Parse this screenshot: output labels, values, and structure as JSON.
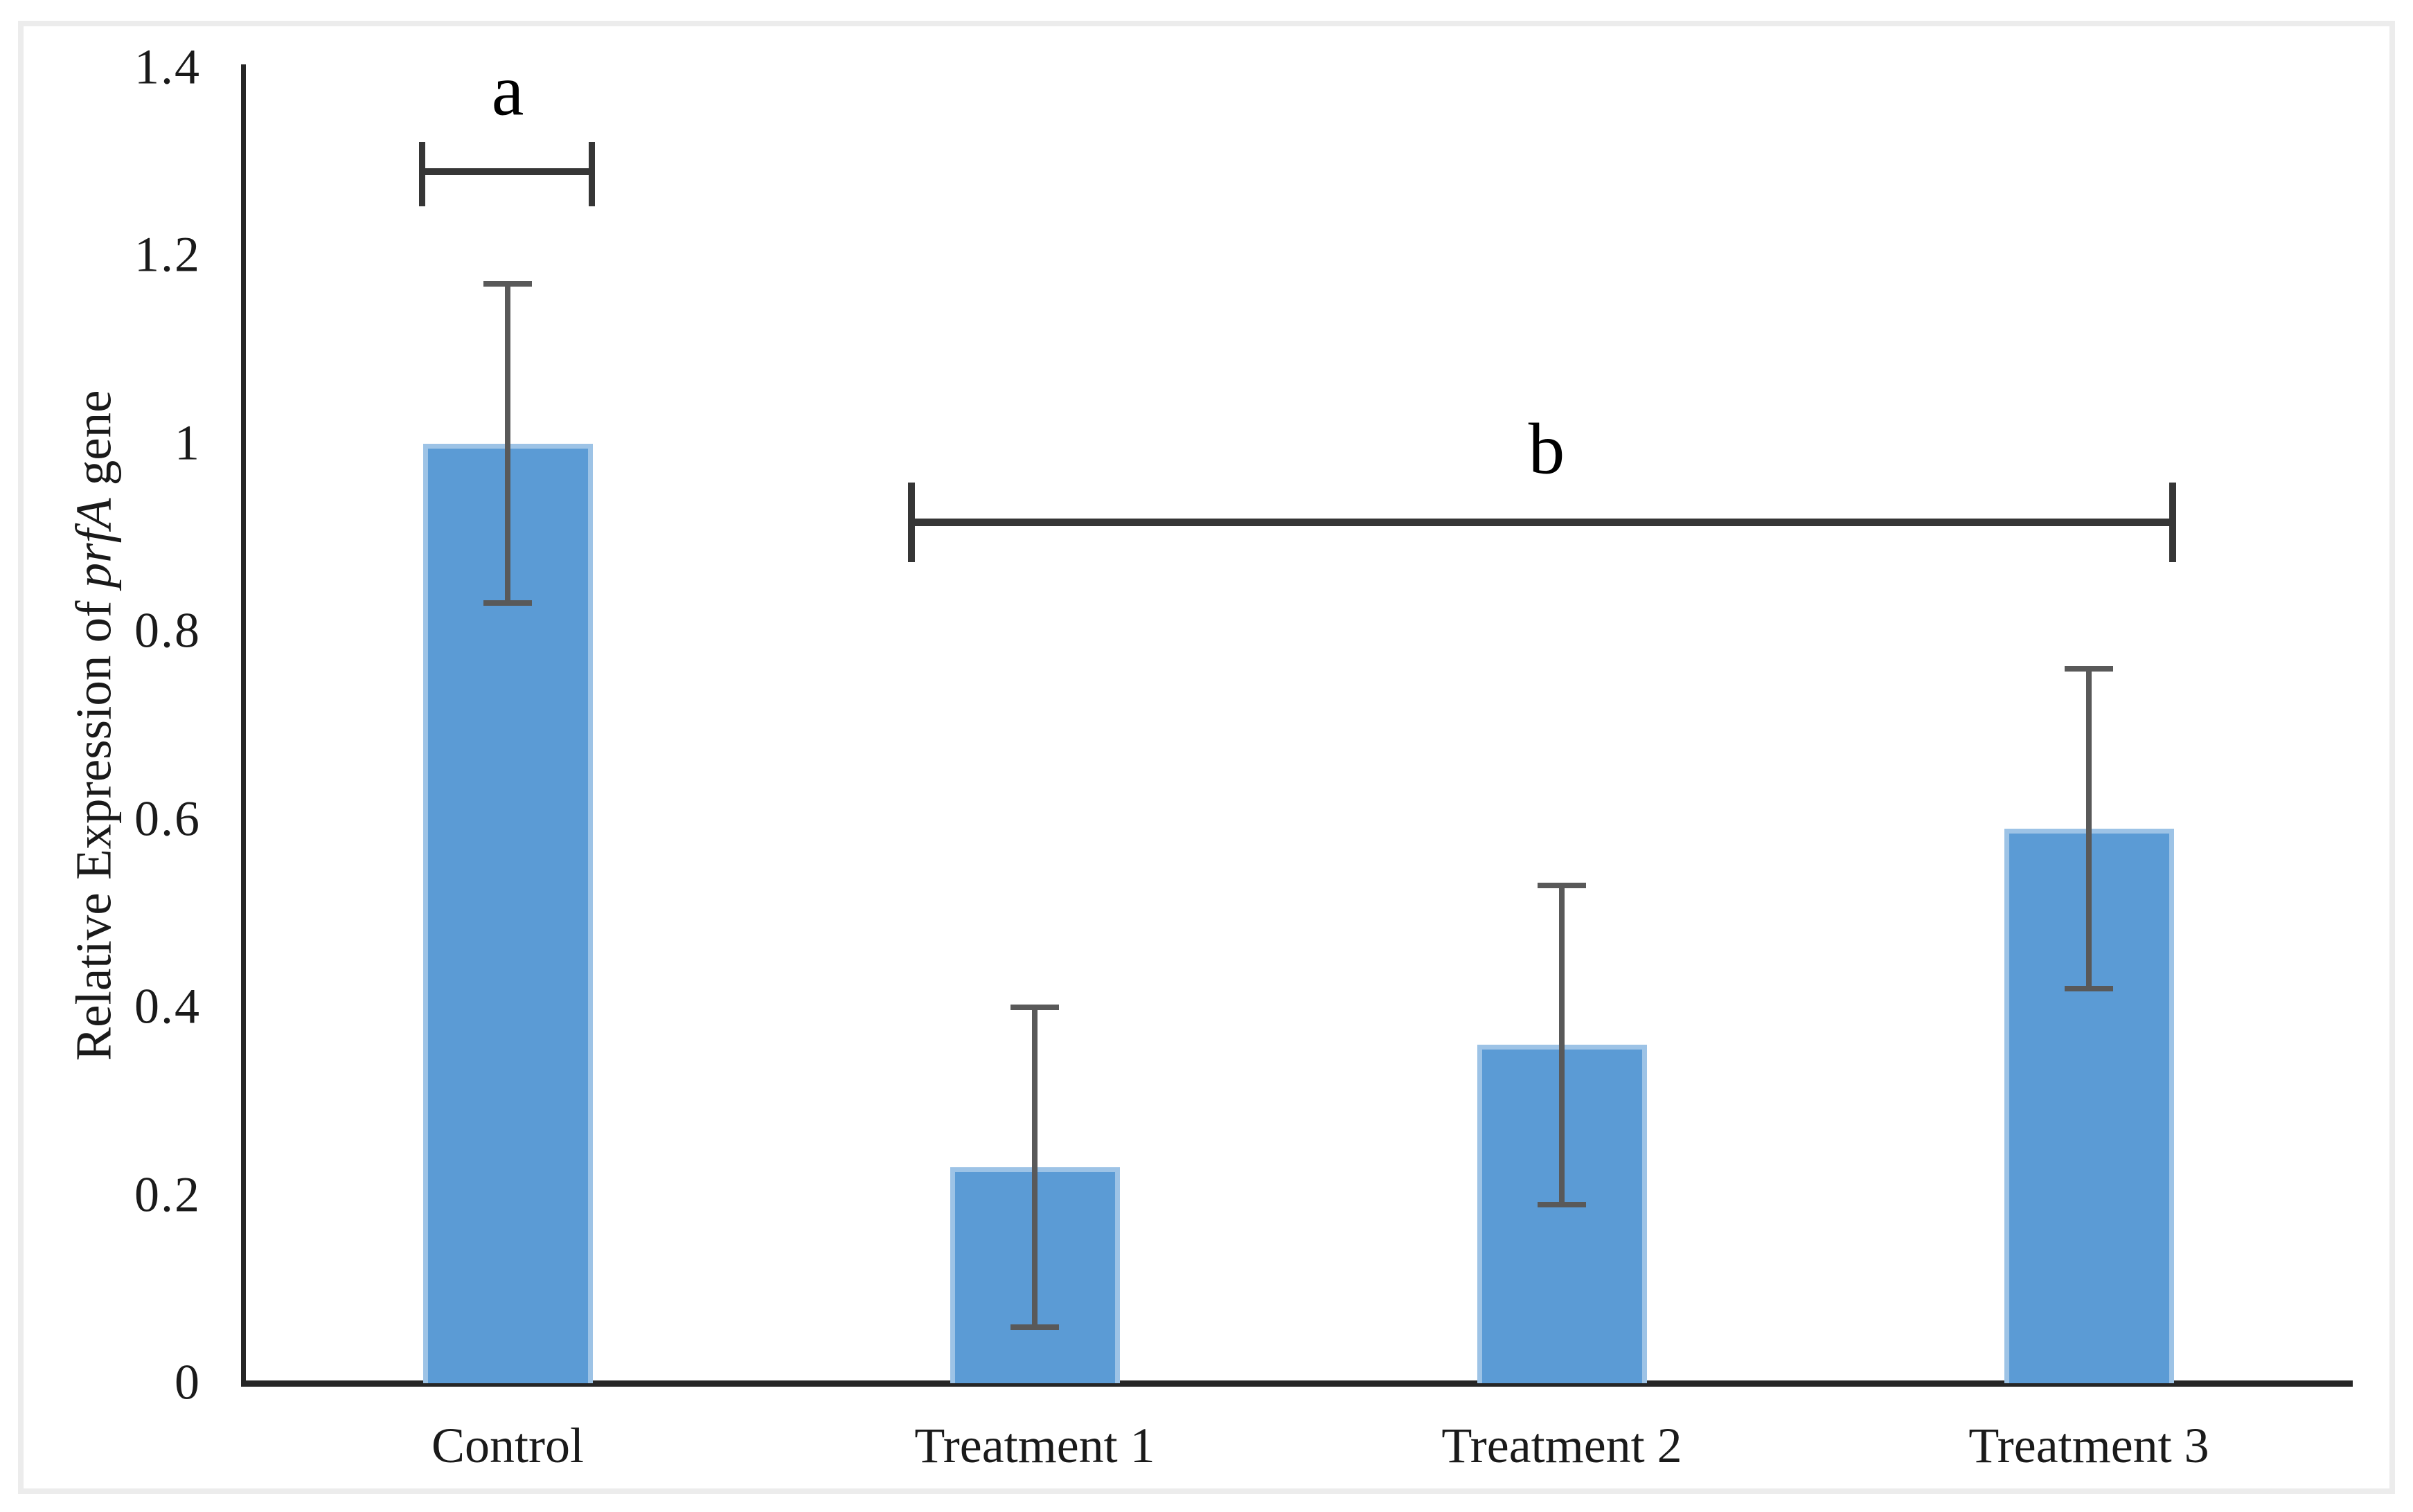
{
  "figure": {
    "background_color": "#ffffff",
    "frame_border_color": "#ececec"
  },
  "chart_data": {
    "type": "bar",
    "title": "",
    "categories": [
      "Control",
      "Treatment 1",
      "Treatment 2",
      "Treatment 3"
    ],
    "values": [
      1.0,
      0.23,
      0.36,
      0.59
    ],
    "error_bars": {
      "symmetric": true,
      "values": [
        0.17,
        0.17,
        0.17,
        0.17
      ],
      "upper_points": [
        1.17,
        0.4,
        0.53,
        0.76
      ],
      "lower_points": [
        0.83,
        0.06,
        0.19,
        0.42
      ]
    },
    "xlabel": "",
    "ylabel_text": "Relative Expression of prfA gene",
    "ylabel_parts": {
      "prefix": "Relative Expression of ",
      "italic": "prfA",
      "suffix": " gene"
    },
    "ylim": [
      0,
      1.4
    ],
    "ytick_step": 0.2,
    "yticks": [
      {
        "value": 0,
        "label": "0"
      },
      {
        "value": 0.2,
        "label": "0.2"
      },
      {
        "value": 0.4,
        "label": "0.4"
      },
      {
        "value": 0.6,
        "label": "0.6"
      },
      {
        "value": 0.8,
        "label": "0.8"
      },
      {
        "value": 1,
        "label": "1"
      },
      {
        "value": 1.2,
        "label": "1.2"
      },
      {
        "value": 1.4,
        "label": "1.4"
      }
    ],
    "grid": false,
    "legend": false,
    "significance_annotations": [
      {
        "label": "a",
        "spans_categories": [
          "Control"
        ]
      },
      {
        "label": "b",
        "spans_categories": [
          "Treatment 1",
          "Treatment 2",
          "Treatment 3"
        ]
      }
    ],
    "colors": {
      "bar_fill": "#5b9bd5",
      "bar_edge": "#9dc3e6",
      "error_bar": "#595959",
      "axis": "#262626",
      "bracket": "#363636",
      "text": "#000000"
    }
  }
}
